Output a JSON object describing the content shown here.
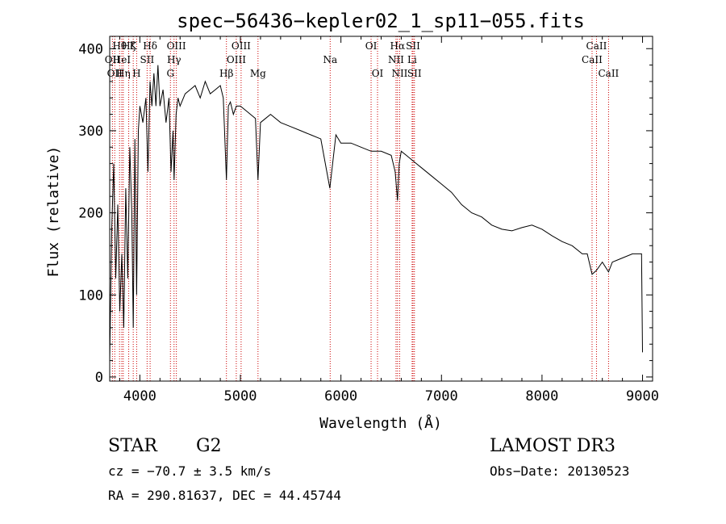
{
  "chart_data": {
    "type": "line",
    "title": "spec−56436−kepler02_1_sp11−055.fits",
    "xlabel": "Wavelength (Å)",
    "ylabel": "Flux (relative)",
    "xlim": [
      3700,
      9100
    ],
    "ylim": [
      -5,
      415
    ],
    "xticks": [
      4000,
      5000,
      6000,
      7000,
      8000,
      9000
    ],
    "yticks": [
      0,
      100,
      200,
      300,
      400
    ],
    "series": [
      {
        "name": "spectrum",
        "x": [
          3700,
          3720,
          3740,
          3760,
          3780,
          3800,
          3820,
          3840,
          3860,
          3880,
          3900,
          3920,
          3934,
          3950,
          3968,
          3985,
          4000,
          4030,
          4060,
          4080,
          4101,
          4120,
          4140,
          4160,
          4180,
          4200,
          4230,
          4260,
          4290,
          4310,
          4330,
          4340,
          4360,
          4380,
          4400,
          4450,
          4500,
          4550,
          4600,
          4650,
          4700,
          4750,
          4800,
          4830,
          4861,
          4880,
          4900,
          4930,
          4960,
          5000,
          5050,
          5100,
          5150,
          5175,
          5200,
          5250,
          5300,
          5400,
          5500,
          5600,
          5700,
          5800,
          5890,
          5950,
          6000,
          6100,
          6200,
          6300,
          6400,
          6500,
          6540,
          6563,
          6580,
          6600,
          6650,
          6700,
          6750,
          6800,
          6900,
          7000,
          7100,
          7200,
          7300,
          7400,
          7500,
          7600,
          7700,
          7800,
          7900,
          8000,
          8100,
          8200,
          8300,
          8400,
          8450,
          8498,
          8542,
          8600,
          8662,
          8700,
          8800,
          8900,
          8990,
          9000
        ],
        "values": [
          20,
          180,
          260,
          120,
          210,
          80,
          150,
          60,
          230,
          120,
          280,
          200,
          60,
          290,
          100,
          300,
          330,
          310,
          340,
          250,
          360,
          330,
          370,
          330,
          380,
          330,
          350,
          310,
          340,
          250,
          300,
          240,
          320,
          340,
          330,
          345,
          350,
          355,
          340,
          360,
          345,
          350,
          355,
          340,
          240,
          330,
          335,
          320,
          330,
          330,
          325,
          320,
          315,
          240,
          310,
          315,
          320,
          310,
          305,
          300,
          295,
          290,
          230,
          295,
          285,
          285,
          280,
          275,
          275,
          270,
          250,
          215,
          260,
          275,
          270,
          265,
          260,
          255,
          245,
          235,
          225,
          210,
          200,
          195,
          185,
          180,
          178,
          182,
          185,
          180,
          172,
          165,
          160,
          150,
          150,
          125,
          130,
          140,
          128,
          140,
          145,
          150,
          150,
          30
        ]
      }
    ],
    "line_markers": [
      {
        "wavelength": 3727,
        "label": "OII",
        "row": 2
      },
      {
        "wavelength": 3750,
        "label": "OII",
        "row": 3
      },
      {
        "wavelength": 3798,
        "label": "Hθ",
        "row": 1
      },
      {
        "wavelength": 3820,
        "label": "HeI",
        "row": 2
      },
      {
        "wavelength": 3835,
        "label": "Hη",
        "row": 3
      },
      {
        "wavelength": 3889,
        "label": "Hζ",
        "row": 1
      },
      {
        "wavelength": 3934,
        "label": "K",
        "row": 1
      },
      {
        "wavelength": 3968,
        "label": "H",
        "row": 3
      },
      {
        "wavelength": 4072,
        "label": "SII",
        "row": 2
      },
      {
        "wavelength": 4102,
        "label": "Hδ",
        "row": 1
      },
      {
        "wavelength": 4304,
        "label": "G",
        "row": 3
      },
      {
        "wavelength": 4340,
        "label": "Hγ",
        "row": 2
      },
      {
        "wavelength": 4363,
        "label": "OIII",
        "row": 1
      },
      {
        "wavelength": 4861,
        "label": "Hβ",
        "row": 3
      },
      {
        "wavelength": 4959,
        "label": "OIII",
        "row": 2
      },
      {
        "wavelength": 5007,
        "label": "OIII",
        "row": 1
      },
      {
        "wavelength": 5175,
        "label": "Mg",
        "row": 3
      },
      {
        "wavelength": 5893,
        "label": "Na",
        "row": 2
      },
      {
        "wavelength": 6300,
        "label": "OI",
        "row": 1
      },
      {
        "wavelength": 6364,
        "label": "OI",
        "row": 3
      },
      {
        "wavelength": 6548,
        "label": "NII",
        "row": 2
      },
      {
        "wavelength": 6563,
        "label": "Hα",
        "row": 1
      },
      {
        "wavelength": 6584,
        "label": "NII",
        "row": 3
      },
      {
        "wavelength": 6708,
        "label": "Li",
        "row": 2
      },
      {
        "wavelength": 6717,
        "label": "SII",
        "row": 1
      },
      {
        "wavelength": 6731,
        "label": "SII",
        "row": 3
      },
      {
        "wavelength": 8498,
        "label": "CaII",
        "row": 2
      },
      {
        "wavelength": 8542,
        "label": "CaII",
        "row": 1
      },
      {
        "wavelength": 8662,
        "label": "CaII",
        "row": 3
      }
    ]
  },
  "info": {
    "class_text": "STAR",
    "subclass_text": "G2",
    "cz_text": "cz = −70.7 ± 3.5 km/s",
    "coords_text": "RA = 290.81637, DEC =  44.45744",
    "survey_text": "LAMOST DR3",
    "obs_date_text": "Obs−Date: 20130523"
  },
  "colors": {
    "marker_line": "#cc0000",
    "spectrum": "#000000",
    "axes": "#000000"
  }
}
